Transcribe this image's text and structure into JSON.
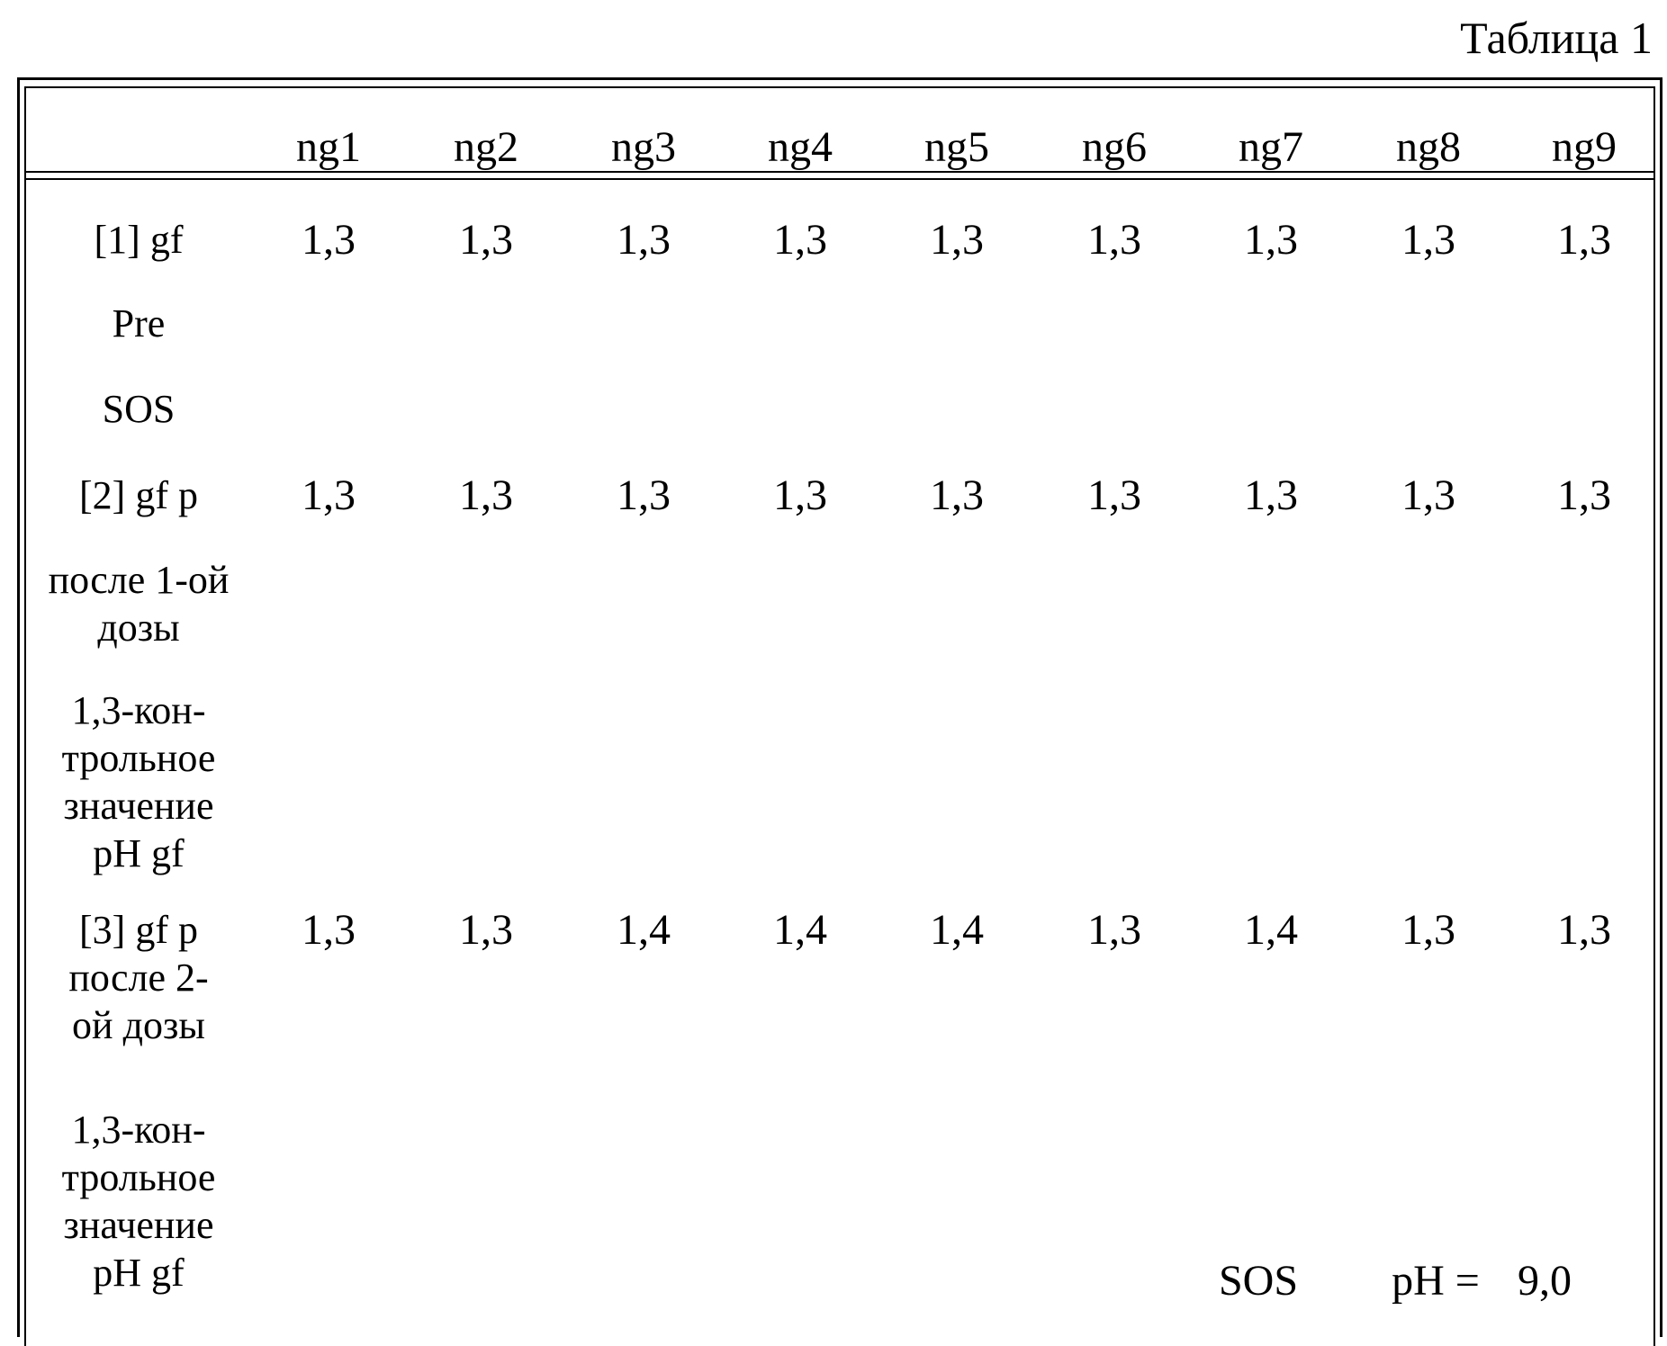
{
  "caption": "Таблица 1",
  "columns": [
    "",
    "ng1",
    "ng2",
    "ng3",
    "ng4",
    "ng5",
    "ng6",
    "ng7",
    "ng8",
    "ng9"
  ],
  "rows": [
    {
      "label": "[1] gf",
      "values": [
        "1,3",
        "1,3",
        "1,3",
        "1,3",
        "1,3",
        "1,3",
        "1,3",
        "1,3",
        "1,3"
      ]
    },
    {
      "label": "Pre",
      "values": []
    },
    {
      "label": "SOS",
      "values": []
    },
    {
      "label": "[2] gf p",
      "values": [
        "1,3",
        "1,3",
        "1,3",
        "1,3",
        "1,3",
        "1,3",
        "1,3",
        "1,3",
        "1,3"
      ]
    },
    {
      "label_lines": [
        "после 1-ой",
        "дозы"
      ],
      "values": []
    },
    {
      "label_lines": [
        "1,3-кон-",
        "трольное",
        "значение",
        "pH gf"
      ],
      "values": []
    },
    {
      "label_lines": [
        "[3] gf p",
        "после 2-",
        "ой дозы"
      ],
      "values": [
        "1,3",
        "1,3",
        "1,4",
        "1,4",
        "1,4",
        "1,3",
        "1,4",
        "1,3",
        "1,3"
      ]
    },
    {
      "label_lines": [
        "1,3-кон-",
        "трольное",
        "значение",
        "pH gf"
      ],
      "values": []
    }
  ],
  "footer": {
    "label": "SOS",
    "ph_label": "pH =",
    "ph_value": "9,0"
  }
}
